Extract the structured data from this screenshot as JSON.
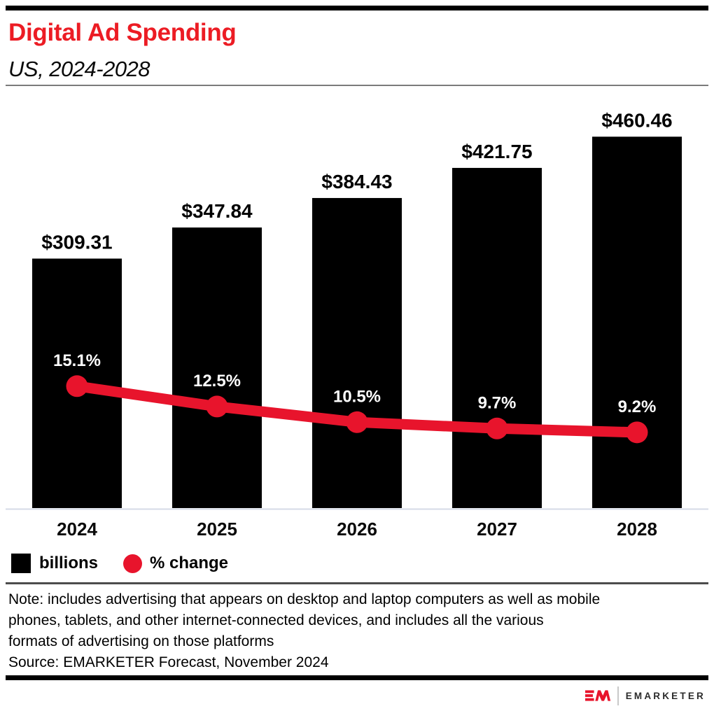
{
  "header": {
    "title": "Digital Ad Spending",
    "subtitle": "US, 2024-2028"
  },
  "chart_data": {
    "type": "bar",
    "title": "Digital Ad Spending",
    "subtitle": "US, 2024-2028",
    "categories": [
      "2024",
      "2025",
      "2026",
      "2027",
      "2028"
    ],
    "series": [
      {
        "name": "billions",
        "type": "bar",
        "unit": "US$ billions",
        "values": [
          309.31,
          347.84,
          384.43,
          421.75,
          460.46
        ],
        "labels": [
          "$309.31",
          "$347.84",
          "$384.43",
          "$421.75",
          "$460.46"
        ],
        "color": "#000000"
      },
      {
        "name": "% change",
        "type": "line",
        "unit": "percent",
        "values": [
          15.1,
          12.5,
          10.5,
          9.7,
          9.2
        ],
        "labels": [
          "15.1%",
          "12.5%",
          "10.5%",
          "9.7%",
          "9.2%"
        ],
        "color": "#e8142c"
      }
    ],
    "xlabel": "",
    "ylabel": "",
    "grid": false,
    "legend_position": "bottom",
    "bar_axis_baseline": 0
  },
  "legend": {
    "items": [
      {
        "label": "billions",
        "swatch": "square",
        "color": "#000000"
      },
      {
        "label": "% change",
        "swatch": "circle",
        "color": "#e8142c"
      }
    ]
  },
  "note_lines": [
    "Note: includes advertising that appears on desktop and laptop computers as well as mobile",
    "phones, tablets, and other internet-connected devices, and includes all the various",
    "formats of advertising on those platforms"
  ],
  "source": "Source: EMARKETER Forecast, November 2024",
  "footer": {
    "brand": "EMARKETER",
    "logo": "em-logo"
  },
  "colors": {
    "brand_red": "#ec1c24",
    "series_red": "#e8142c",
    "bar_black": "#000000",
    "axis_line": "#d6dbe7",
    "percent_label_white": "#ffffff"
  }
}
